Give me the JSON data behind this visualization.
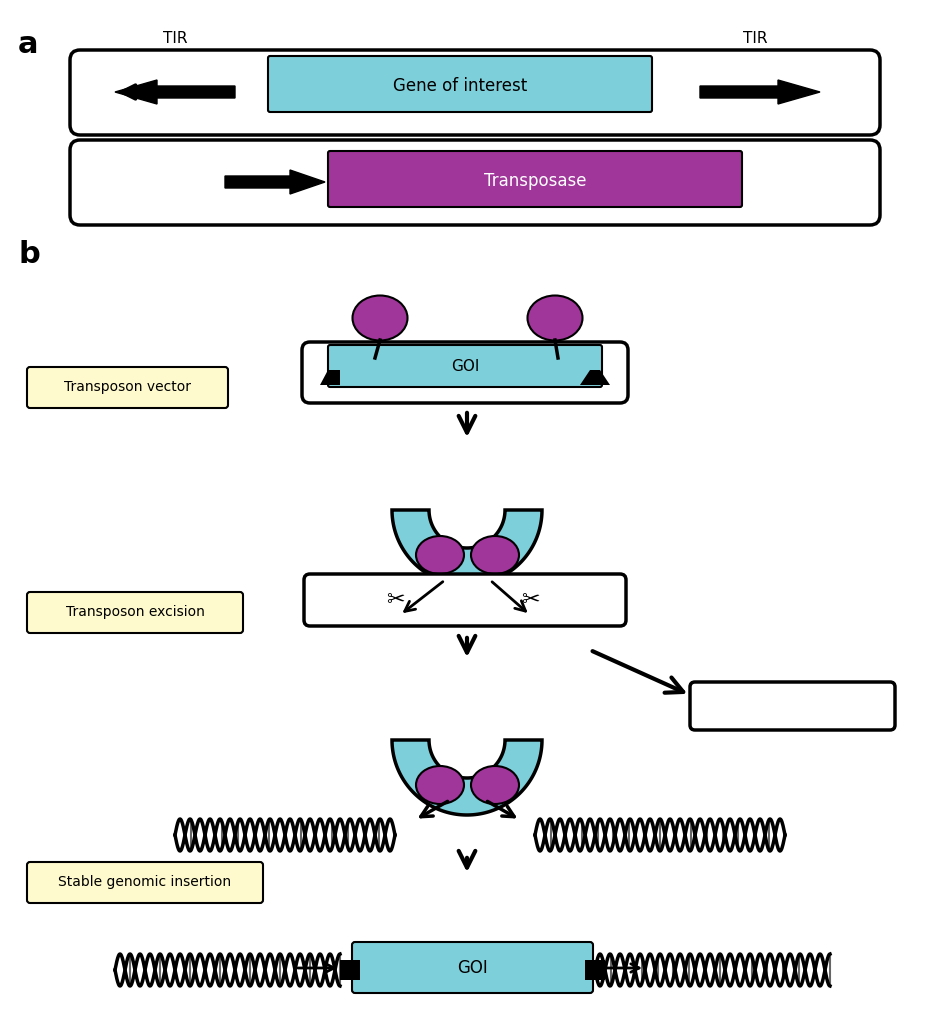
{
  "bg_color": "#ffffff",
  "cyan_color": "#7DCFDA",
  "purple_color": "#A0359A",
  "yellow_bg": "#FFFACD",
  "label_a": "a",
  "label_b": "b",
  "text_gene_of_interest": "Gene of interest",
  "text_transposase": "Transposase",
  "text_goi": "GOI",
  "text_tir": "TIR",
  "text_transposon_vector": "Transposon vector",
  "text_transposon_excision": "Transposon excision",
  "text_stable_insertion": "Stable genomic insertion"
}
